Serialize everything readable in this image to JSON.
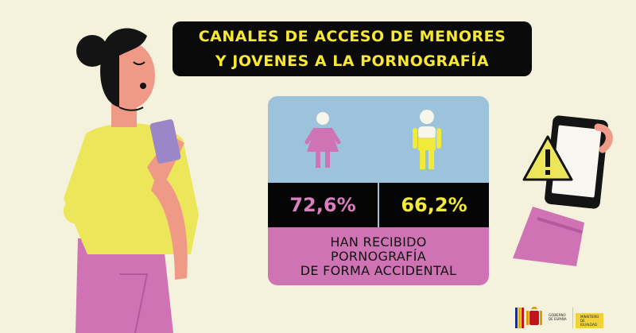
{
  "title": {
    "line1": "CANALES DE ACCESO DE MENORES",
    "line2": "Y JOVENES A LA PORNOGRAFÍA"
  },
  "stats": {
    "girls_value": "72,6%",
    "boys_value": "66,2%",
    "caption_line1": "HAN RECIBIDO",
    "caption_line2": "PORNOGRAFÍA",
    "caption_line3": "DE FORMA ACCIDENTAL"
  },
  "logo": {
    "gobierno_line1": "GOBIERNO",
    "gobierno_line2": "DE ESPAÑA",
    "ministerio_line1": "MINISTERIO",
    "ministerio_line2": "DE IGUALDAD"
  },
  "colors": {
    "background": "#f4f2dc",
    "title_text": "#f6e833",
    "pink": "#cf73b5",
    "blue": "#9dc2db",
    "yellow": "#f2ea3a"
  },
  "icons": [
    "girl-figure-icon",
    "boy-figure-icon",
    "warning-icon",
    "phone-icon"
  ]
}
